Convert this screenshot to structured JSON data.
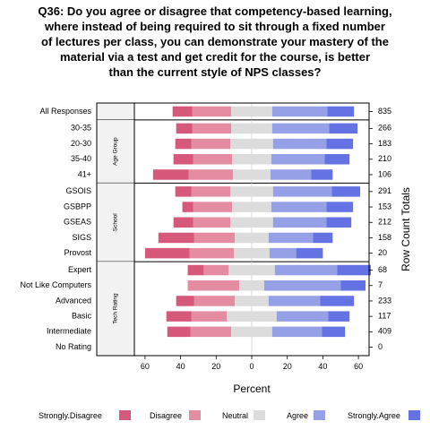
{
  "title_lines": [
    "Q36: Do you agree or disagree that competency-based learning,",
    "where instead of being required to sit through a fixed number",
    "of lectures per class, you can demonstrate your mastery of the",
    "material via a test and get credit for the course, is better",
    "than the current style of NPS classes?"
  ],
  "colors": {
    "Strongly.Disagree": "#d6587a",
    "Disagree": "#e48ca2",
    "Neutral": "#dcdcdc",
    "Agree": "#96a0e6",
    "Strongly.Agree": "#6472e4",
    "panel_strip": "#f2f2f2"
  },
  "chart_data": {
    "type": "bar",
    "stacked": "diverging",
    "xlabel": "Percent",
    "right_axis_label": "Row Count Totals",
    "xlim": [
      -66,
      66
    ],
    "xticks": [
      -60,
      -40,
      -20,
      0,
      20,
      40,
      60
    ],
    "xtick_labels": [
      "60",
      "40",
      "20",
      "0",
      "20",
      "40",
      "60"
    ],
    "legend_position": "bottom",
    "levels": [
      "Strongly.Disagree",
      "Disagree",
      "Neutral",
      "Agree",
      "Strongly.Agree"
    ],
    "panels": [
      {
        "strip": "",
        "rows": [
          {
            "label": "All Responses",
            "total": "835",
            "values": [
              11,
              22,
              23,
              31,
              15
            ]
          }
        ]
      },
      {
        "strip": "Age Group",
        "rows": [
          {
            "label": "30-35",
            "total": "266",
            "values": [
              9,
              22,
              23,
              32,
              16
            ]
          },
          {
            "label": "20-30",
            "total": "183",
            "values": [
              9,
              22,
              24,
              30,
              15
            ]
          },
          {
            "label": "35-40",
            "total": "210",
            "values": [
              11,
              22,
              22,
              30,
              14
            ]
          },
          {
            "label": "41+",
            "total": "106",
            "values": [
              20,
              25,
              21,
              23,
              12
            ]
          }
        ]
      },
      {
        "strip": "School",
        "rows": [
          {
            "label": "GSOIS",
            "total": "291",
            "values": [
              9,
              22,
              24,
              33,
              16
            ]
          },
          {
            "label": "GSBPP",
            "total": "153",
            "values": [
              6,
              22,
              22,
              31,
              15
            ]
          },
          {
            "label": "GSEAS",
            "total": "212",
            "values": [
              11,
              21,
              24,
              30,
              14
            ]
          },
          {
            "label": "SIGS",
            "total": "158",
            "values": [
              20,
              23,
              19,
              25,
              11
            ]
          },
          {
            "label": "Provost",
            "total": "20",
            "values": [
              25,
              25,
              20,
              15,
              15
            ]
          }
        ]
      },
      {
        "strip": "Tech Rating",
        "rows": [
          {
            "label": "Expert",
            "total": "68",
            "values": [
              9,
              14,
              26,
              35,
              19
            ]
          },
          {
            "label": "Not Like Computers",
            "total": "7",
            "values": [
              0,
              29,
              14,
              43,
              14
            ]
          },
          {
            "label": "Advanced",
            "total": "233",
            "values": [
              10,
              23,
              19,
              29,
              19
            ]
          },
          {
            "label": "Basic",
            "total": "117",
            "values": [
              14,
              20,
              28,
              29,
              12
            ]
          },
          {
            "label": "Intermediate",
            "total": "409",
            "values": [
              13,
              23,
              23,
              28,
              13
            ]
          },
          {
            "label": "No Rating",
            "total": "0",
            "values": [
              0,
              0,
              0,
              0,
              0
            ]
          }
        ]
      }
    ]
  }
}
